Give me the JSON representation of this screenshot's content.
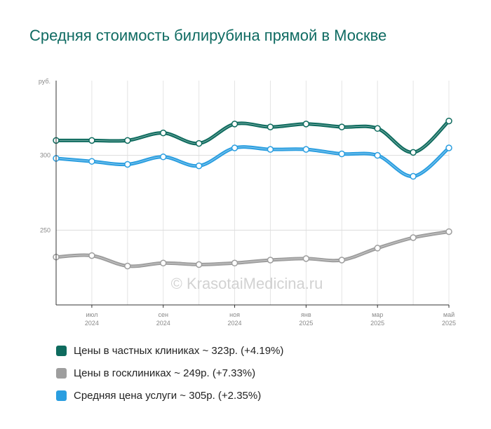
{
  "title": "Средняя стоимость билирубина прямой в Москве",
  "watermark": "© KrasotaiMedicina.ru",
  "chart_data": {
    "type": "line",
    "title": "Средняя стоимость билирубина прямой в Москве",
    "y_unit": "руб.",
    "ylim": [
      200,
      350
    ],
    "y_ticks": [
      250,
      300
    ],
    "grid": true,
    "x": [
      "2024-06",
      "2024-07",
      "2024-08",
      "2024-09",
      "2024-10",
      "2024-11",
      "2024-12",
      "2025-01",
      "2025-02",
      "2025-03",
      "2025-04",
      "2025-05"
    ],
    "x_tick_labels": [
      {
        "month": "июл",
        "year": "2024",
        "index": 1
      },
      {
        "month": "сен",
        "year": "2024",
        "index": 3
      },
      {
        "month": "ноя",
        "year": "2024",
        "index": 5
      },
      {
        "month": "янв",
        "year": "2025",
        "index": 7
      },
      {
        "month": "мар",
        "year": "2025",
        "index": 9
      },
      {
        "month": "май",
        "year": "2025",
        "index": 11
      }
    ],
    "series": [
      {
        "name": "Цены в частных клиниках",
        "color": "#0e6b5e",
        "values": [
          310,
          310,
          310,
          315,
          308,
          321,
          319,
          321,
          319,
          318,
          302,
          323
        ]
      },
      {
        "name": "Цены в госклиниках",
        "color": "#9e9e9e",
        "values": [
          232,
          233,
          226,
          228,
          227,
          228,
          230,
          231,
          230,
          238,
          245,
          249
        ]
      },
      {
        "name": "Средняя цена услуги",
        "color": "#2a9ee0",
        "values": [
          298,
          296,
          294,
          299,
          293,
          305,
          304,
          304,
          301,
          300,
          286,
          305
        ]
      }
    ],
    "legend_position": "bottom"
  },
  "legend": [
    {
      "label": "Цены в частных клиниках ~ 323р. (+4.19%)",
      "color": "#0e6b5e"
    },
    {
      "label": "Цены в госклиниках ~ 249р. (+7.33%)",
      "color": "#9e9e9e"
    },
    {
      "label": "Средняя цена услуги ~ 305р. (+2.35%)",
      "color": "#2a9ee0"
    }
  ]
}
